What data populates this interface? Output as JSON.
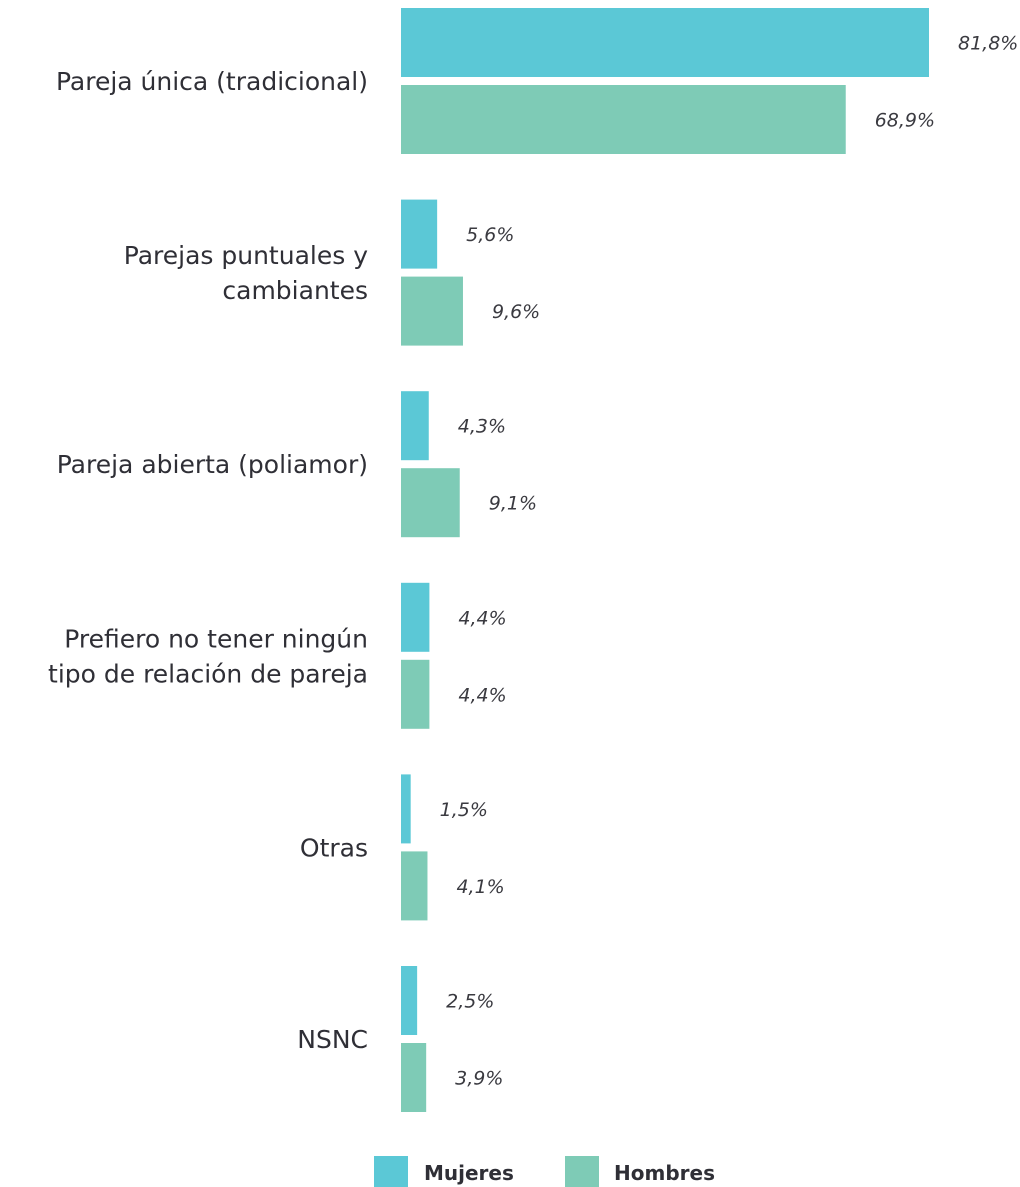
{
  "chart_data": {
    "type": "bar",
    "orientation": "horizontal",
    "categories": [
      [
        "Pareja única (tradicional)"
      ],
      [
        "Parejas puntuales y",
        "cambiantes"
      ],
      [
        "Pareja abierta (poliamor)"
      ],
      [
        "Prefiero no tener ningún",
        "tipo de relación de pareja"
      ],
      [
        "Otras"
      ],
      [
        "NSNC"
      ]
    ],
    "series": [
      {
        "name": "Mujeres",
        "color": "#5bc8d6",
        "values": [
          81.8,
          5.6,
          4.3,
          4.4,
          1.5,
          2.5
        ],
        "labels": [
          "81,8%",
          "5,6%",
          "4,3%",
          "4,4%",
          "1,5%",
          "2,5%"
        ]
      },
      {
        "name": "Hombres",
        "color": "#7ecbb6",
        "values": [
          68.9,
          9.6,
          9.1,
          4.4,
          4.1,
          3.9
        ],
        "labels": [
          "68,9%",
          "9,6%",
          "9,1%",
          "4,4%",
          "4,1%",
          "3,9%"
        ]
      }
    ],
    "xlim": [
      0,
      81.8
    ],
    "grid": false,
    "legend": "bottom-center"
  }
}
